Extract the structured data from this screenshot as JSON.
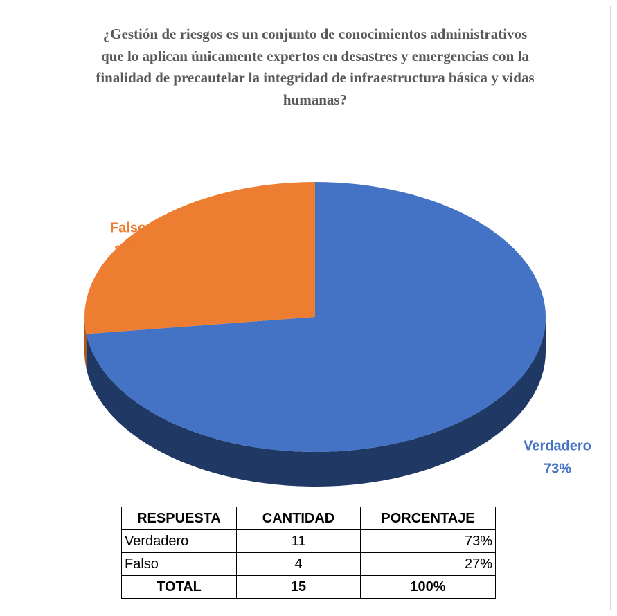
{
  "chart_data": {
    "type": "pie",
    "title": "¿Gestión de riesgos es un conjunto de conocimientos administrativos que lo aplican únicamente expertos en desastres y emergencias con la finalidad de precautelar la integridad de infraestructura básica y vidas humanas?",
    "categories": [
      "Verdadero",
      "Falso"
    ],
    "values": [
      73,
      27
    ],
    "value_labels": [
      "73%",
      "27%"
    ],
    "colors": [
      "#4472c4",
      "#ed7d31"
    ],
    "side_colors": [
      "#203864",
      "#b35512"
    ]
  },
  "table": {
    "header": [
      "RESPUESTA",
      "CANTIDAD",
      "PORCENTAJE"
    ],
    "rows": [
      [
        "Verdadero",
        11,
        "73%"
      ],
      [
        "Falso",
        4,
        "27%"
      ]
    ],
    "total": [
      "TOTAL",
      15,
      "100%"
    ]
  }
}
